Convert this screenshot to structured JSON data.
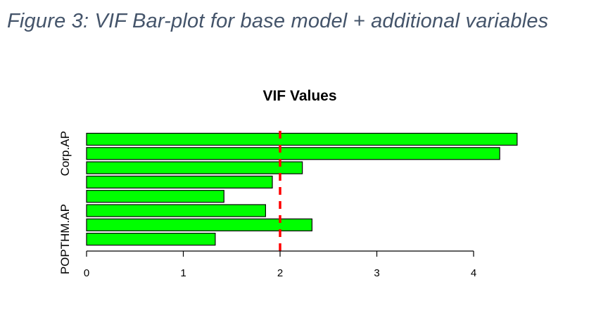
{
  "figure": {
    "caption": "Figure 3: VIF Bar-plot for base model + additional variables"
  },
  "chart_data": {
    "type": "bar",
    "orientation": "horizontal",
    "title": "VIF Values",
    "xlabel": "",
    "ylabel": "",
    "xlim": [
      0,
      4.5
    ],
    "xticks": [
      0,
      1,
      2,
      3,
      4
    ],
    "categories": [
      "POPTHM.AP",
      "",
      "",
      "",
      "",
      "",
      "Corp.AP",
      ""
    ],
    "values": [
      1.33,
      2.33,
      1.85,
      1.42,
      1.92,
      2.23,
      4.27,
      4.45
    ],
    "reference_line": {
      "x": 2,
      "style": "dashed"
    },
    "colors": {
      "bar_fill": "#00ff00",
      "bar_stroke": "#000000",
      "reference_line": "#ff0000"
    }
  }
}
